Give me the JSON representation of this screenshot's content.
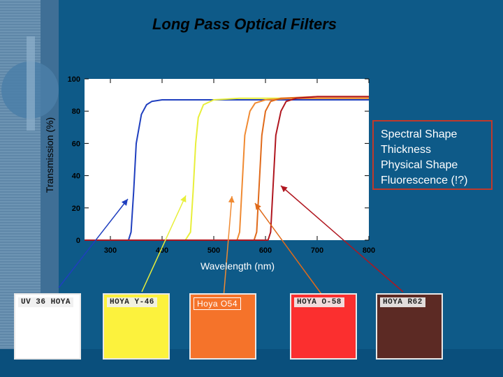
{
  "title": "Long Pass Optical Filters",
  "notes": [
    "Spectral Shape",
    "Thickness",
    "Physical Shape",
    "Fluorescence (!?)"
  ],
  "colors": {
    "background": "#0e5a88",
    "plot_bg": "#ffffff",
    "note_border": "#c0392b"
  },
  "chart_data": {
    "type": "line",
    "title": "",
    "xlabel": "Wavelength (nm)",
    "ylabel": "Transmission (%)",
    "xlim": [
      250,
      800
    ],
    "ylim": [
      0,
      100
    ],
    "xticks": [
      300,
      400,
      500,
      600,
      700,
      800
    ],
    "yticks": [
      0,
      20,
      40,
      60,
      80,
      100
    ],
    "series": [
      {
        "color": "#1f3fbf",
        "x": [
          250,
          335,
          340,
          345,
          350,
          360,
          370,
          380,
          400,
          450,
          500,
          600,
          800
        ],
        "y": [
          0,
          0,
          5,
          30,
          60,
          78,
          84,
          86,
          87,
          87,
          87,
          87,
          87
        ]
      },
      {
        "color": "#e8ef3a",
        "x": [
          250,
          445,
          455,
          460,
          465,
          470,
          480,
          500,
          550,
          600,
          800
        ],
        "y": [
          0,
          0,
          5,
          30,
          60,
          76,
          84,
          87,
          88,
          88,
          88
        ]
      },
      {
        "color": "#f08a32",
        "x": [
          250,
          545,
          550,
          555,
          560,
          570,
          580,
          600,
          650,
          800
        ],
        "y": [
          0,
          0,
          5,
          35,
          65,
          80,
          85,
          87,
          88,
          88
        ]
      },
      {
        "color": "#e06a1a",
        "x": [
          250,
          578,
          583,
          588,
          593,
          600,
          610,
          630,
          700,
          800
        ],
        "y": [
          0,
          0,
          5,
          35,
          65,
          80,
          86,
          88,
          89,
          89
        ]
      },
      {
        "color": "#b0161f",
        "x": [
          250,
          605,
          610,
          615,
          620,
          630,
          640,
          660,
          700,
          800
        ],
        "y": [
          0,
          0,
          5,
          35,
          65,
          80,
          86,
          88,
          89,
          89
        ]
      }
    ]
  },
  "filters": [
    {
      "label": "UV 36 HOYA",
      "color": "#ffffff",
      "label_color": "#e8e8e8"
    },
    {
      "label": "HOYA Y-46",
      "color": "#fcf23d",
      "label_color": "#e8e8e8"
    },
    {
      "label": "Hoya O54",
      "color": "#f5732a",
      "label_color": ""
    },
    {
      "label": "HOYA O-58",
      "color": "#fb2f2f",
      "label_color": "#e8e8e8"
    },
    {
      "label": "HOYA R62",
      "color": "#5c2a24",
      "label_color": "#e8e8e8"
    }
  ]
}
